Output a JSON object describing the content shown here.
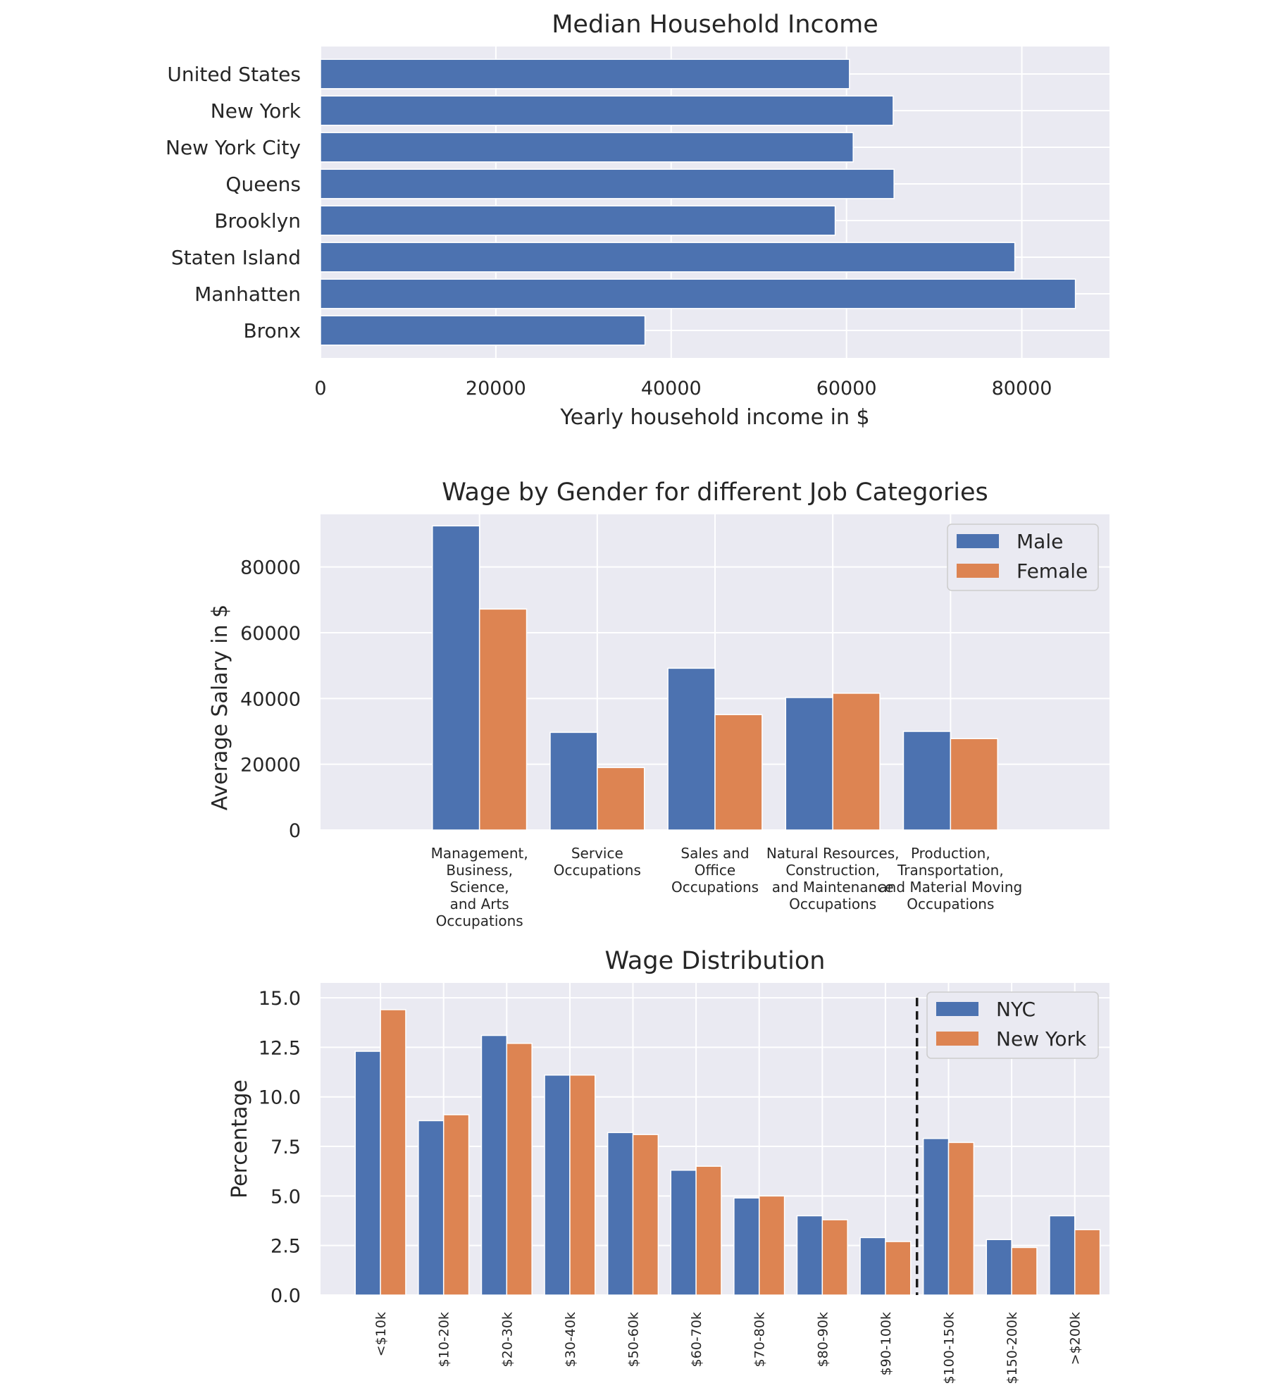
{
  "colors": {
    "background": "#eaeaf2",
    "grid": "#ffffff",
    "text": "#262626",
    "series_blue": "#4c72b0",
    "series_orange": "#dd8452",
    "reference_line": "#1a1a1a"
  },
  "chart_data": [
    {
      "type": "bar",
      "orientation": "horizontal",
      "title": "Median Household Income",
      "xlabel": "Yearly household income in $",
      "ylabel": "",
      "categories": [
        "United States",
        "New York",
        "New York City",
        "Queens",
        "Brooklyn",
        "Staten Island",
        "Manhatten",
        "Bronx"
      ],
      "values": [
        60336,
        65323,
        60762,
        65421,
        58707,
        79201,
        86109,
        37009
      ],
      "xlim": [
        0,
        90000
      ],
      "xticks": [
        "0",
        "20000",
        "40000",
        "60000",
        "80000"
      ],
      "grid": true,
      "legend": null
    },
    {
      "type": "bar",
      "title": "Wage by Gender for different Job Categories",
      "xlabel": "",
      "ylabel": "Average Salary in $",
      "categories": [
        [
          "Management,",
          "Business,",
          "Science,",
          "and Arts",
          "Occupations"
        ],
        [
          "Service",
          "Occupations"
        ],
        [
          "Sales and",
          "Office",
          "Occupations"
        ],
        [
          "Natural Resources,",
          "Construction,",
          "and Maintenance",
          "Occupations"
        ],
        [
          "Production,",
          "Transportation,",
          "and Material Moving",
          "Occupations"
        ]
      ],
      "series": [
        {
          "name": "Male",
          "values": [
            92500,
            29700,
            49200,
            40300,
            30000
          ]
        },
        {
          "name": "Female",
          "values": [
            67200,
            19000,
            35100,
            41600,
            27800
          ]
        }
      ],
      "ylim": [
        0,
        96000
      ],
      "yticks": [
        "0",
        "20000",
        "40000",
        "60000",
        "80000"
      ],
      "grid": true,
      "legend": "top-right"
    },
    {
      "type": "bar",
      "title": "Wage Distribution",
      "xlabel": "",
      "ylabel": "Percentage",
      "categories": [
        "<$10k",
        "$10-20k",
        "$20-30k",
        "$30-40k",
        "$50-60k",
        "$60-70k",
        "$70-80k",
        "$80-90k",
        "$90-100k",
        "$100-150k",
        "$150-200k",
        ">$200k"
      ],
      "series": [
        {
          "name": "NYC",
          "values": [
            12.3,
            8.8,
            13.1,
            11.1,
            8.2,
            6.3,
            4.9,
            4.0,
            2.9,
            7.9,
            2.8,
            4.0
          ]
        },
        {
          "name": "New York",
          "values": [
            14.4,
            9.1,
            12.7,
            11.1,
            8.1,
            6.5,
            5.0,
            3.8,
            2.7,
            7.7,
            2.4,
            3.3
          ]
        }
      ],
      "ylim": [
        0,
        15.75
      ],
      "yticks": [
        "0.0",
        "2.5",
        "5.0",
        "7.5",
        "10.0",
        "12.5",
        "15.0"
      ],
      "reference_line": {
        "style": "dashed",
        "between_categories": [
          "$90-100k",
          "$100-150k"
        ]
      },
      "grid": true,
      "legend": "top-right"
    }
  ]
}
